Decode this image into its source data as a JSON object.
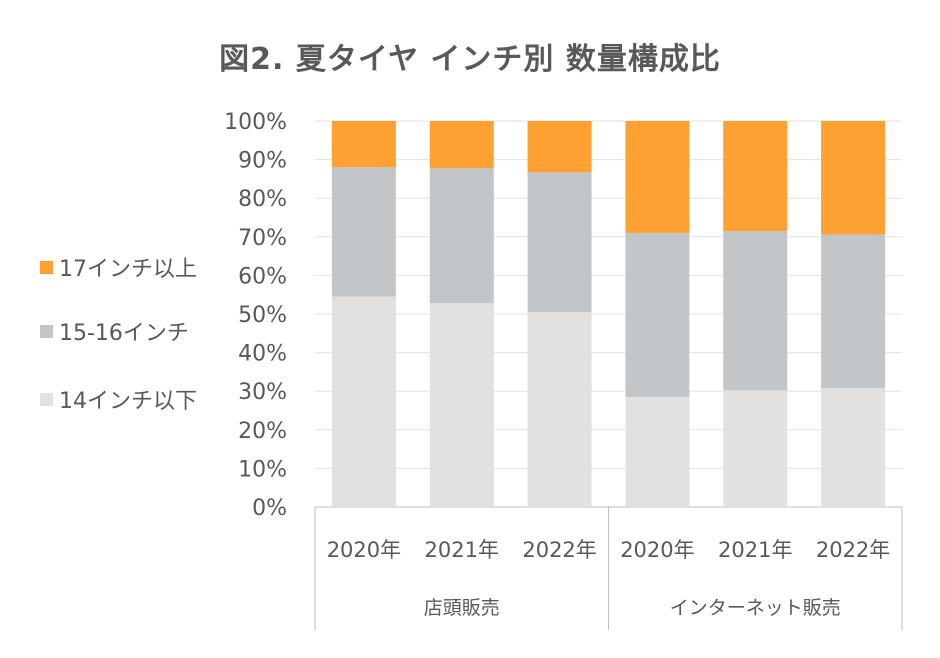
{
  "chart_data": {
    "type": "bar",
    "stacked": true,
    "normalized": true,
    "title": "図2. 夏タイヤ インチ別 数量構成比",
    "title_prefix": "図2.",
    "title_main": "夏タイヤ インチ別 数量構成比",
    "categories": [
      "2020年",
      "2021年",
      "2022年",
      "2020年",
      "2021年",
      "2022年"
    ],
    "groups": [
      {
        "label": "店頭販売",
        "size": 3
      },
      {
        "label": "インターネット販売",
        "size": 3
      }
    ],
    "series": [
      {
        "name": "14インチ以下",
        "color": "#e1e1e1",
        "values": [
          54.5,
          52.8,
          50.5,
          28.5,
          30.2,
          30.8
        ]
      },
      {
        "name": "15-16インチ",
        "color": "#c3c6c8",
        "values": [
          33.5,
          35.0,
          36.2,
          42.5,
          41.3,
          39.8
        ]
      },
      {
        "name": "17インチ以上",
        "color": "#ffa033",
        "values": [
          12.0,
          12.2,
          13.3,
          29.0,
          28.5,
          29.4
        ]
      }
    ],
    "y_ticks": [
      "0%",
      "10%",
      "20%",
      "30%",
      "40%",
      "50%",
      "60%",
      "70%",
      "80%",
      "90%",
      "100%"
    ],
    "ylim": [
      0,
      100
    ],
    "grid": true,
    "legend_position": "left",
    "legend_order": [
      "17インチ以上",
      "15-16インチ",
      "14インチ以下"
    ]
  }
}
